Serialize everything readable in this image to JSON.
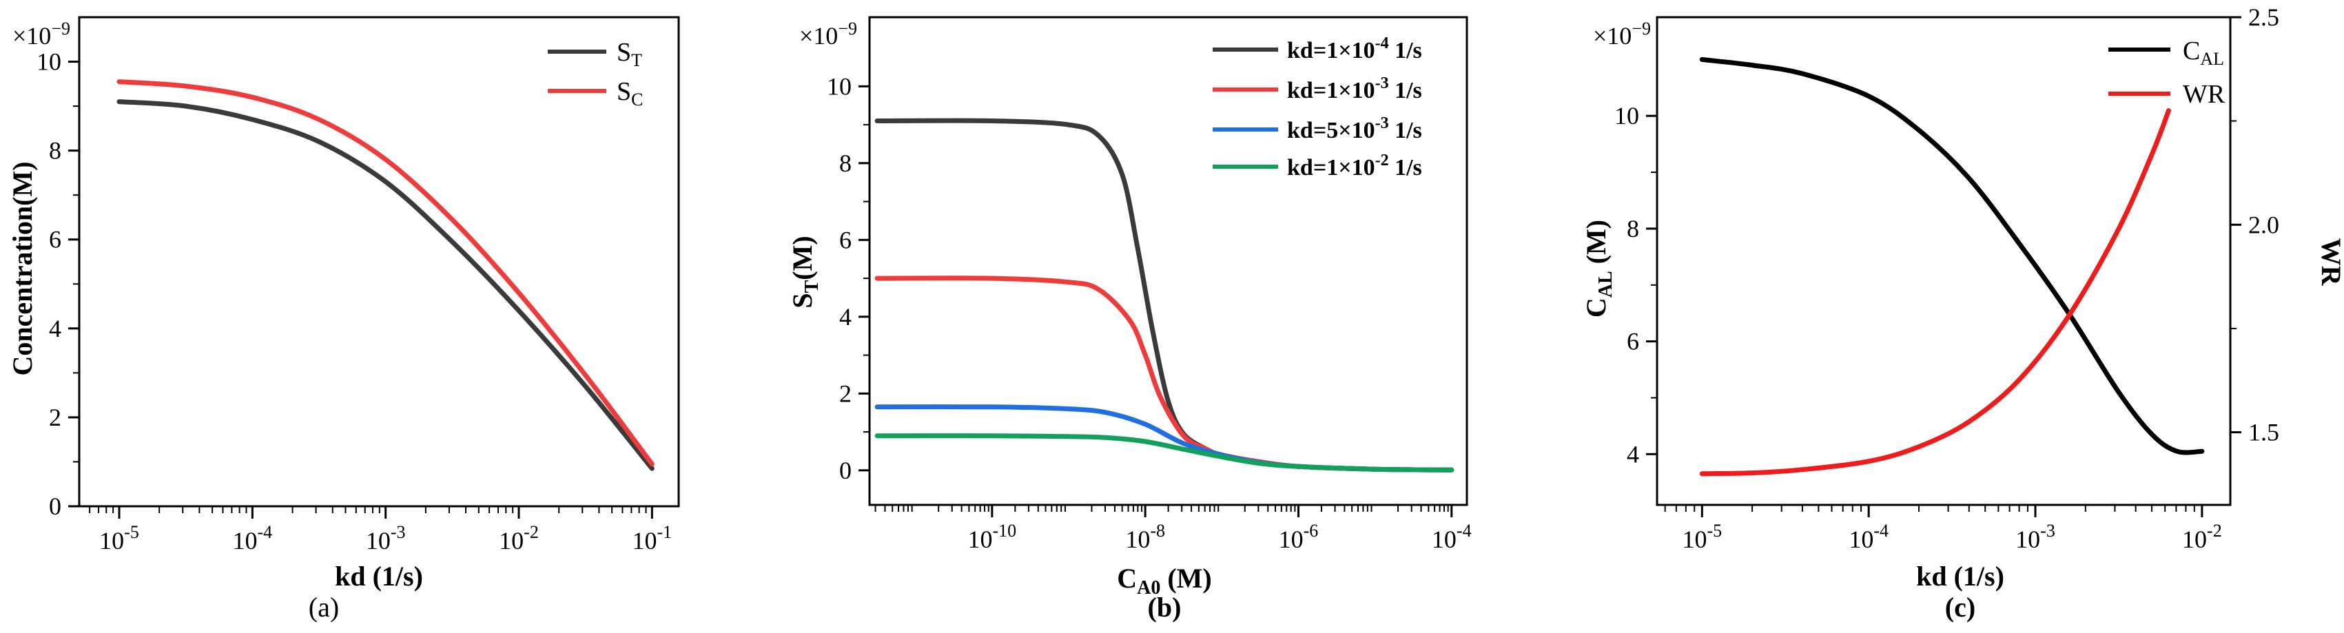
{
  "chart_data": [
    {
      "type": "line",
      "panel_label": "(a)",
      "xlabel": "kd (1/s)",
      "ylabel": "Concentration(M)",
      "x_scale": "log",
      "xlim": [
        -5.3,
        -0.8
      ],
      "ylim": [
        0,
        11
      ],
      "multiplier": "×10",
      "multiplier_exp": "−9",
      "x_ticks": [
        -5,
        -4,
        -3,
        -2,
        -1
      ],
      "x_tick_base": "10",
      "x_tick_exps": [
        "-5",
        "-4",
        "-3",
        "-2",
        "-1"
      ],
      "y_ticks": [
        0,
        2,
        4,
        6,
        8,
        10
      ],
      "y_tick_labels": [
        "0",
        "2",
        "4",
        "6",
        "8",
        "10"
      ],
      "series": [
        {
          "name": "S",
          "sub": "T",
          "color": "#3a3a3a",
          "x": [
            -5,
            -4.5,
            -4,
            -3.5,
            -3,
            -2.5,
            -2,
            -1.5,
            -1
          ],
          "y": [
            9.1,
            9.0,
            8.7,
            8.2,
            7.3,
            5.95,
            4.4,
            2.7,
            0.85
          ]
        },
        {
          "name": "S",
          "sub": "C",
          "color": "#ee3b3b",
          "x": [
            -5,
            -4.5,
            -4,
            -3.5,
            -3,
            -2.5,
            -2,
            -1.5,
            -1
          ],
          "y": [
            9.55,
            9.45,
            9.2,
            8.7,
            7.8,
            6.45,
            4.8,
            2.95,
            0.95
          ]
        }
      ]
    },
    {
      "type": "line",
      "panel_label": "(b)",
      "xlabel": "C",
      "xlabel_sub": "A0",
      "xlabel_tail": " (M)",
      "ylabel": "S",
      "ylabel_sub": "T",
      "ylabel_tail": "(M)",
      "x_scale": "log",
      "xlim": [
        -11.6,
        -3.8
      ],
      "ylim": [
        -0.9,
        11.8
      ],
      "multiplier": "×10",
      "multiplier_exp": "−9",
      "x_ticks": [
        -10,
        -8,
        -6,
        -4
      ],
      "x_tick_base": "10",
      "x_tick_exps": [
        "-10",
        "-8",
        "-6",
        "-4"
      ],
      "y_ticks": [
        0,
        2,
        4,
        6,
        8,
        10
      ],
      "y_tick_labels": [
        "0",
        "2",
        "4",
        "6",
        "8",
        "10"
      ],
      "series": [
        {
          "name": "kd=1×10",
          "exp": "-4",
          "unit": " 1/s",
          "color": "#3a3a3a",
          "x": [
            -11.5,
            -10,
            -9,
            -8.6,
            -8.3,
            -8.1,
            -7.9,
            -7.7,
            -7.5,
            -7.2,
            -7,
            -6.5,
            -6,
            -5,
            -4
          ],
          "y": [
            9.1,
            9.1,
            9.0,
            8.7,
            7.7,
            5.8,
            3.6,
            1.8,
            0.95,
            0.55,
            0.4,
            0.22,
            0.1,
            0.03,
            0.01
          ]
        },
        {
          "name": "kd=1×10",
          "exp": "-3",
          "unit": " 1/s",
          "color": "#ee3b3b",
          "x": [
            -11.5,
            -10,
            -9,
            -8.6,
            -8.2,
            -8,
            -7.8,
            -7.5,
            -7.2,
            -7,
            -6.5,
            -6,
            -5,
            -4
          ],
          "y": [
            5.0,
            5.0,
            4.9,
            4.7,
            3.9,
            3.0,
            1.9,
            0.9,
            0.55,
            0.4,
            0.22,
            0.1,
            0.03,
            0.01
          ]
        },
        {
          "name": "kd=5×10",
          "exp": "-3",
          "unit": " 1/s",
          "color": "#1f6fe0",
          "x": [
            -11.5,
            -10,
            -9,
            -8.5,
            -8,
            -7.5,
            -7,
            -6.5,
            -6,
            -5,
            -4
          ],
          "y": [
            1.65,
            1.65,
            1.6,
            1.5,
            1.2,
            0.7,
            0.4,
            0.2,
            0.1,
            0.03,
            0.01
          ]
        },
        {
          "name": "kd=1×10",
          "exp": "-2",
          "unit": " 1/s",
          "color": "#12a05a",
          "x": [
            -11.5,
            -10,
            -9,
            -8.5,
            -8,
            -7.5,
            -7,
            -6.5,
            -6,
            -5,
            -4
          ],
          "y": [
            0.9,
            0.9,
            0.88,
            0.85,
            0.75,
            0.55,
            0.35,
            0.18,
            0.1,
            0.03,
            0.01
          ]
        }
      ]
    },
    {
      "type": "line",
      "panel_label": "(c)",
      "xlabel": "kd (1/s)",
      "ylabel": "C",
      "ylabel_sub": "AL",
      "ylabel_tail": " (M)",
      "y2label": "WR",
      "x_scale": "log",
      "xlim": [
        -5.27,
        -1.83
      ],
      "ylim": [
        3.1,
        11.75
      ],
      "y2lim": [
        1.325,
        2.5
      ],
      "multiplier": "×10",
      "multiplier_exp": "−9",
      "x_ticks": [
        -5,
        -4,
        -3,
        -2
      ],
      "x_tick_base": "10",
      "x_tick_exps": [
        "-5",
        "-4",
        "-3",
        "-2"
      ],
      "y_ticks": [
        4,
        6,
        8,
        10
      ],
      "y_tick_labels": [
        "4",
        "6",
        "8",
        "10"
      ],
      "y2_ticks": [
        1.5,
        2.0,
        2.5
      ],
      "y2_tick_labels": [
        "1.5",
        "2.0",
        "2.5"
      ],
      "series": [
        {
          "name": "C",
          "sub": "AL",
          "axis": "left",
          "color": "#000000",
          "x": [
            -5,
            -4.7,
            -4.4,
            -4,
            -3.7,
            -3.4,
            -3.1,
            -2.8,
            -2.5,
            -2.3,
            -2.15,
            -2
          ],
          "y": [
            11.0,
            10.9,
            10.75,
            10.35,
            9.75,
            8.9,
            7.75,
            6.5,
            5.1,
            4.35,
            4.05,
            4.05
          ]
        },
        {
          "name": "WR",
          "axis": "right",
          "color": "#ee1c1c",
          "x": [
            -5,
            -4.7,
            -4.4,
            -4,
            -3.7,
            -3.4,
            -3.1,
            -2.8,
            -2.5,
            -2.3,
            -2.2
          ],
          "y": [
            1.4,
            1.402,
            1.41,
            1.43,
            1.465,
            1.525,
            1.625,
            1.78,
            1.99,
            2.17,
            2.275
          ]
        }
      ]
    }
  ]
}
